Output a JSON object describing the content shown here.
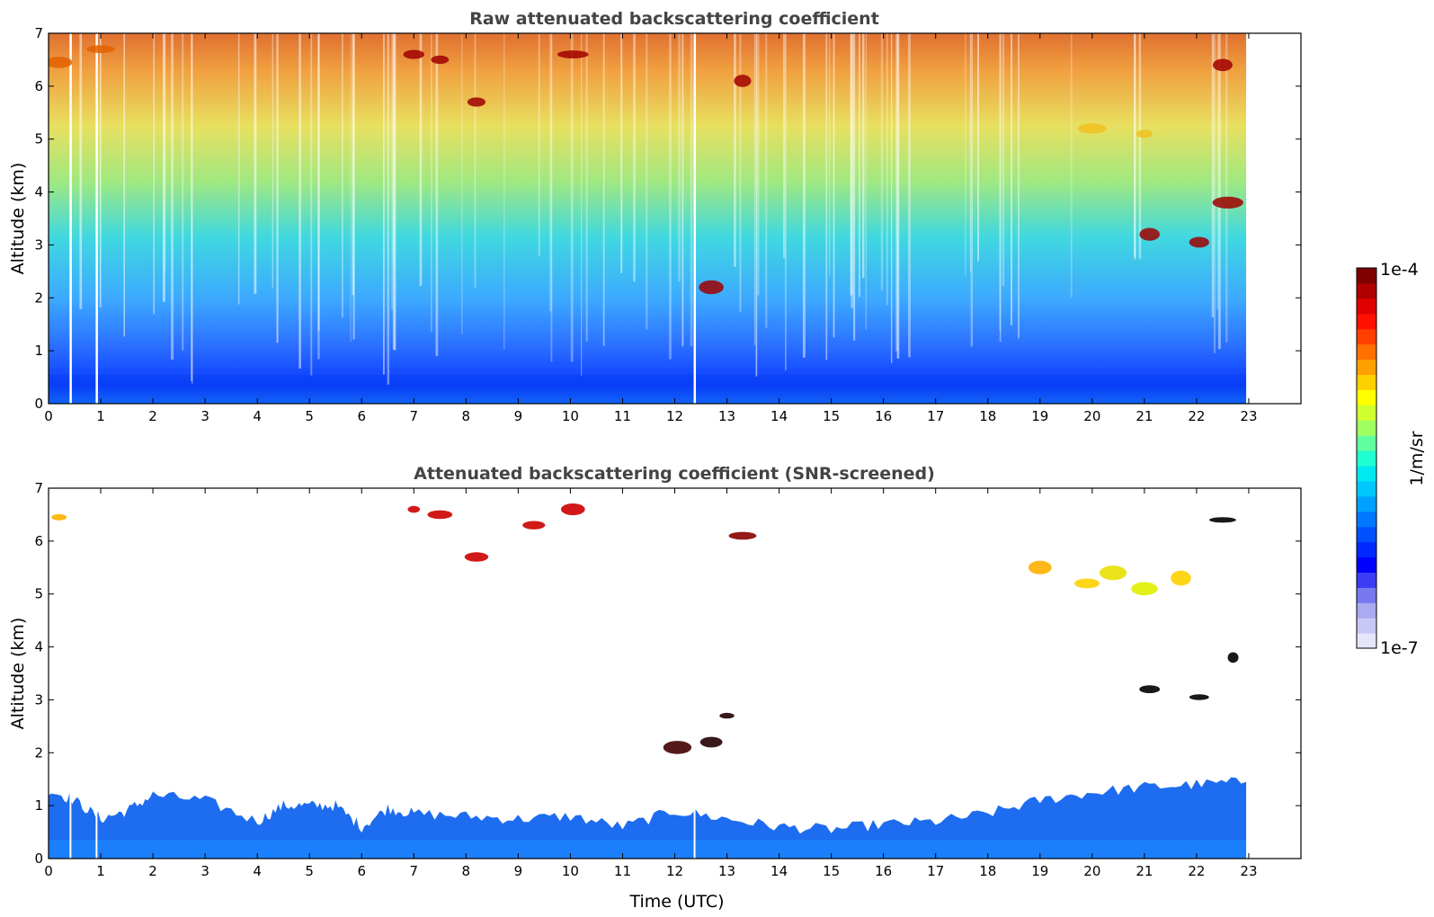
{
  "chart_data": [
    {
      "type": "heatmap",
      "title": "Raw attenuated backscattering coefficient",
      "xlabel": "",
      "ylabel": "Altitude (km)",
      "xlim": [
        0,
        24
      ],
      "ylim": [
        0,
        7
      ],
      "xticks": [
        "0",
        "1",
        "2",
        "3",
        "4",
        "5",
        "6",
        "7",
        "8",
        "9",
        "10",
        "11",
        "12",
        "13",
        "14",
        "15",
        "16",
        "17",
        "18",
        "19",
        "20",
        "21",
        "22",
        "23"
      ],
      "yticks": [
        "0",
        "1",
        "2",
        "3",
        "4",
        "5",
        "6",
        "7"
      ],
      "data_time_range": [
        0,
        22.95
      ],
      "colormap": "jet",
      "color_scale": "log",
      "description_fields": {
        "near_surface_level": "1e-6 to 3e-6 (blue) below ~1 km",
        "upper_level": "1e-5 to 5e-5 (yellow-red) above ~5 km",
        "data_gaps_time": [
          0.42,
          0.92,
          12.38
        ]
      },
      "features": [
        {
          "t": 0.2,
          "alt": 6.45,
          "level": "high"
        },
        {
          "t": 1.0,
          "alt": 6.7,
          "level": "high"
        },
        {
          "t": 7.0,
          "alt": 6.6,
          "level": "very-high"
        },
        {
          "t": 7.5,
          "alt": 6.5,
          "level": "very-high"
        },
        {
          "t": 8.2,
          "alt": 5.7,
          "level": "very-high"
        },
        {
          "t": 10.05,
          "alt": 6.6,
          "level": "very-high"
        },
        {
          "t": 12.7,
          "alt": 2.2,
          "level": "very-high"
        },
        {
          "t": 13.3,
          "alt": 6.1,
          "level": "very-high"
        },
        {
          "t": 20.0,
          "alt": 5.2,
          "level": "medium-high"
        },
        {
          "t": 21.0,
          "alt": 5.1,
          "level": "medium-high"
        },
        {
          "t": 22.5,
          "alt": 6.4,
          "level": "very-high"
        },
        {
          "t": 22.6,
          "alt": 3.8,
          "level": "very-high"
        },
        {
          "t": 22.05,
          "alt": 3.05,
          "level": "very-high"
        },
        {
          "t": 21.1,
          "alt": 3.2,
          "level": "very-high"
        }
      ]
    },
    {
      "type": "heatmap",
      "title": "Attenuated backscattering coefficient (SNR-screened)",
      "xlabel": "Time (UTC)",
      "ylabel": "Altitude (km)",
      "xlim": [
        0,
        24
      ],
      "ylim": [
        0,
        7
      ],
      "xticks": [
        "0",
        "1",
        "2",
        "3",
        "4",
        "5",
        "6",
        "7",
        "8",
        "9",
        "10",
        "11",
        "12",
        "13",
        "14",
        "15",
        "16",
        "17",
        "18",
        "19",
        "20",
        "21",
        "22",
        "23"
      ],
      "yticks": [
        "0",
        "1",
        "2",
        "3",
        "4",
        "5",
        "6",
        "7"
      ],
      "data_time_range": [
        0,
        22.95
      ],
      "colormap": "jet",
      "color_scale": "log",
      "boundary_layer_top_km": [
        [
          0,
          1.3
        ],
        [
          0.5,
          1.1
        ],
        [
          1,
          0.75
        ],
        [
          1.5,
          0.9
        ],
        [
          2,
          1.2
        ],
        [
          3,
          1.1
        ],
        [
          4,
          0.7
        ],
        [
          4.5,
          1.0
        ],
        [
          5,
          1.0
        ],
        [
          5.5,
          1.0
        ],
        [
          6,
          0.6
        ],
        [
          6.5,
          0.95
        ],
        [
          7,
          0.85
        ],
        [
          8,
          0.8
        ],
        [
          9,
          0.75
        ],
        [
          10,
          0.8
        ],
        [
          11,
          0.6
        ],
        [
          12,
          0.9
        ],
        [
          13,
          0.75
        ],
        [
          14,
          0.6
        ],
        [
          15,
          0.55
        ],
        [
          16,
          0.65
        ],
        [
          17,
          0.7
        ],
        [
          18,
          0.85
        ],
        [
          19,
          1.1
        ],
        [
          20,
          1.25
        ],
        [
          21,
          1.35
        ],
        [
          22,
          1.4
        ],
        [
          22.95,
          1.45
        ]
      ],
      "clouds": [
        {
          "t": 0.2,
          "alt": 6.45,
          "color": "#ffb000"
        },
        {
          "t": 7.0,
          "alt": 6.6,
          "color": "#cc0000"
        },
        {
          "t": 7.5,
          "alt": 6.5,
          "color": "#cc0000"
        },
        {
          "t": 8.2,
          "alt": 5.7,
          "color": "#cc0000"
        },
        {
          "t": 9.3,
          "alt": 6.3,
          "color": "#cc0000"
        },
        {
          "t": 10.05,
          "alt": 6.6,
          "color": "#cc0000"
        },
        {
          "t": 13.3,
          "alt": 6.1,
          "color": "#880000"
        },
        {
          "t": 12.7,
          "alt": 2.2,
          "color": "#220000"
        },
        {
          "t": 13.0,
          "alt": 2.7,
          "color": "#220000"
        },
        {
          "t": 12.05,
          "alt": 2.1,
          "color": "#440000"
        },
        {
          "t": 19.9,
          "alt": 5.2,
          "color": "#ffd000"
        },
        {
          "t": 20.4,
          "alt": 5.4,
          "color": "#e8e000"
        },
        {
          "t": 21.0,
          "alt": 5.1,
          "color": "#e0f000"
        },
        {
          "t": 21.7,
          "alt": 5.3,
          "color": "#ffd000"
        },
        {
          "t": 19.0,
          "alt": 5.5,
          "color": "#ffb000"
        },
        {
          "t": 22.5,
          "alt": 6.4,
          "color": "#000000"
        },
        {
          "t": 22.7,
          "alt": 3.8,
          "color": "#000000"
        },
        {
          "t": 22.05,
          "alt": 3.05,
          "color": "#000000"
        },
        {
          "t": 21.1,
          "alt": 3.2,
          "color": "#000000"
        }
      ]
    }
  ],
  "colorbar": {
    "label": "1/m/sr",
    "max_label": "1e-4",
    "min_label": "1e-7",
    "scale": "log",
    "colors": [
      "#e6e6fa",
      "#c8c8f5",
      "#aaaaf0",
      "#7878f0",
      "#3c3cf5",
      "#0000ff",
      "#0028ff",
      "#0050ff",
      "#0078ff",
      "#00a0ff",
      "#00c8ff",
      "#00e8f0",
      "#20ffd0",
      "#60ffa0",
      "#a0ff60",
      "#d0ff30",
      "#ffff00",
      "#ffd000",
      "#ffa000",
      "#ff7000",
      "#ff4000",
      "#ff1000",
      "#e00000",
      "#b00000",
      "#800000"
    ]
  }
}
